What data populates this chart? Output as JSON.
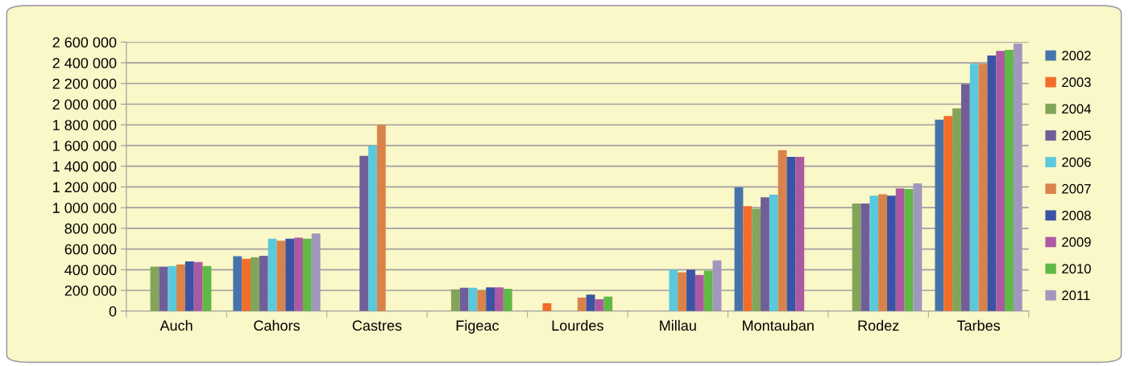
{
  "chart_data": {
    "type": "bar",
    "categories": [
      "Auch",
      "Cahors",
      "Castres",
      "Figeac",
      "Lourdes",
      "Millau",
      "Montauban",
      "Rodez",
      "Tarbes"
    ],
    "series": [
      {
        "name": "2002",
        "color": "#4674aa",
        "values": [
          null,
          530000,
          null,
          null,
          null,
          null,
          1195000,
          null,
          1850000
        ]
      },
      {
        "name": "2003",
        "color": "#f26d2b",
        "values": [
          null,
          505000,
          null,
          null,
          75000,
          null,
          1015000,
          null,
          1885000
        ]
      },
      {
        "name": "2004",
        "color": "#82a55a",
        "values": [
          430000,
          520000,
          null,
          210000,
          null,
          null,
          990000,
          1040000,
          1960000
        ]
      },
      {
        "name": "2005",
        "color": "#705e99",
        "values": [
          430000,
          535000,
          1500000,
          225000,
          null,
          null,
          1100000,
          1040000,
          2195000
        ]
      },
      {
        "name": "2006",
        "color": "#5bc8dc",
        "values": [
          435000,
          700000,
          1600000,
          225000,
          null,
          400000,
          1125000,
          1115000,
          2390000
        ]
      },
      {
        "name": "2007",
        "color": "#d9834a",
        "values": [
          450000,
          680000,
          1800000,
          200000,
          130000,
          375000,
          1555000,
          1130000,
          2390000
        ]
      },
      {
        "name": "2008",
        "color": "#3a53a4",
        "values": [
          480000,
          700000,
          null,
          230000,
          160000,
          400000,
          1490000,
          1115000,
          2470000
        ]
      },
      {
        "name": "2009",
        "color": "#ab5aa2",
        "values": [
          475000,
          710000,
          null,
          230000,
          115000,
          350000,
          1490000,
          1185000,
          2515000
        ]
      },
      {
        "name": "2010",
        "color": "#60b946",
        "values": [
          435000,
          700000,
          null,
          215000,
          140000,
          390000,
          null,
          1180000,
          2525000
        ]
      },
      {
        "name": "2011",
        "color": "#a196bd",
        "values": [
          null,
          750000,
          null,
          null,
          null,
          490000,
          null,
          1235000,
          2585000
        ]
      }
    ],
    "ylim": [
      0,
      2600000
    ],
    "yticks": [
      0,
      {
        "value": 200000,
        "label": "200 000"
      },
      {
        "value": 400000,
        "label": "400 000"
      },
      {
        "value": 600000,
        "label": "600 000"
      },
      {
        "value": 800000,
        "label": "800 000"
      },
      {
        "value": 1000000,
        "label": "1 000 000"
      },
      {
        "value": 1200000,
        "label": "1 200 000"
      },
      {
        "value": 1400000,
        "label": "1 400 000"
      },
      {
        "value": 1600000,
        "label": "1 600 000"
      },
      {
        "value": 1800000,
        "label": "1 800 000"
      },
      {
        "value": 2000000,
        "label": "2 000 000"
      },
      {
        "value": 2200000,
        "label": "2 200 000"
      },
      {
        "value": 2400000,
        "label": "2 400 000"
      },
      {
        "value": 2600000,
        "label": "2 600 000"
      }
    ],
    "grid": "y",
    "legend": "right"
  }
}
